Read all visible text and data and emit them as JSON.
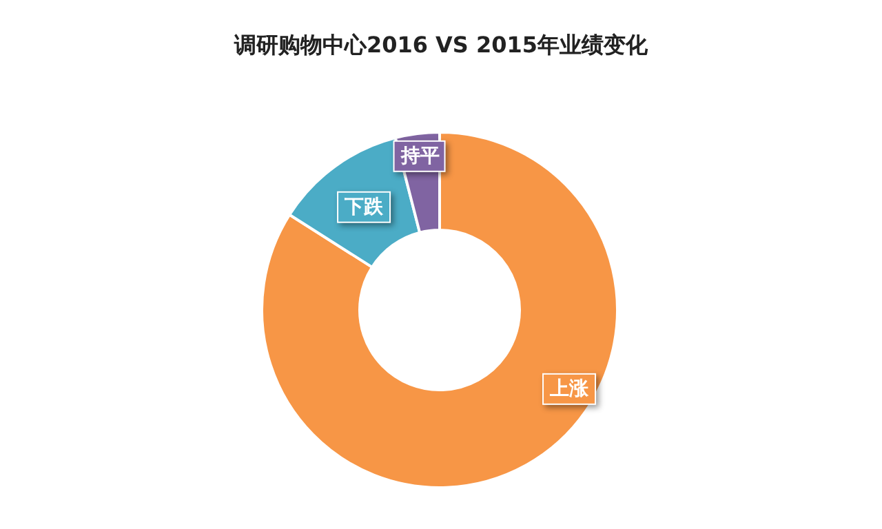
{
  "chart_data": {
    "type": "donut",
    "title": "调研购物中心2016 VS 2015年业绩变化",
    "categories": [
      "上涨",
      "下跌",
      "持平"
    ],
    "values": [
      84,
      12,
      4
    ],
    "colors": [
      "#f79646",
      "#4bacc6",
      "#8064a2"
    ]
  }
}
